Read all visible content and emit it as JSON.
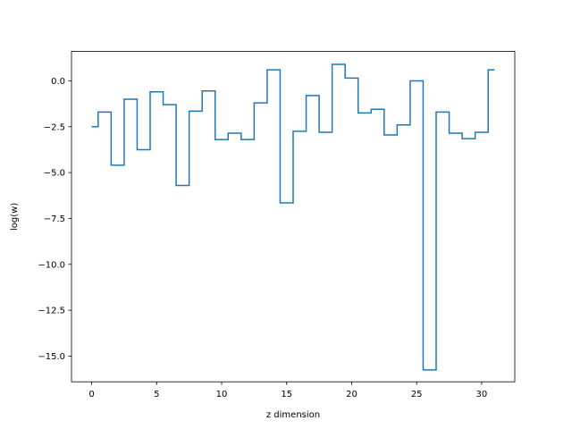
{
  "chart_data": {
    "type": "line",
    "drawstyle": "steps-mid",
    "title": "",
    "xlabel": "z dimension",
    "ylabel": "log(w)",
    "xlim": [
      -1.55,
      32.55
    ],
    "ylim": [
      -16.4,
      1.6
    ],
    "xticks": [
      0,
      5,
      10,
      15,
      20,
      25,
      30
    ],
    "xtick_labels": [
      "0",
      "5",
      "10",
      "15",
      "20",
      "25",
      "30"
    ],
    "yticks": [
      0.0,
      -2.5,
      -5.0,
      -7.5,
      -10.0,
      -12.5,
      -15.0
    ],
    "ytick_labels": [
      "0.0",
      "−2.5",
      "−5.0",
      "−7.5",
      "−10.0",
      "−12.5",
      "−15.0"
    ],
    "grid": false,
    "legend": "none",
    "line_color": "#1f77b4",
    "series": [
      {
        "x": [
          0,
          1,
          2,
          3,
          4,
          5,
          6,
          7,
          8,
          9,
          10,
          11,
          12,
          13,
          14,
          15,
          16,
          17,
          18,
          19,
          20,
          21,
          22,
          23,
          24,
          25,
          26,
          27,
          28,
          29,
          30,
          31
        ],
        "values": [
          -2.5,
          -1.7,
          -4.6,
          -1.0,
          -3.75,
          -0.6,
          -1.3,
          -5.7,
          -1.65,
          -0.55,
          -3.2,
          -2.85,
          -3.2,
          -1.2,
          0.6,
          -6.65,
          -2.75,
          -0.8,
          -2.8,
          0.9,
          0.15,
          -1.75,
          -1.55,
          -2.95,
          -2.4,
          0.0,
          -15.75,
          -1.7,
          -2.85,
          -3.15,
          -2.8,
          0.6
        ]
      }
    ]
  }
}
